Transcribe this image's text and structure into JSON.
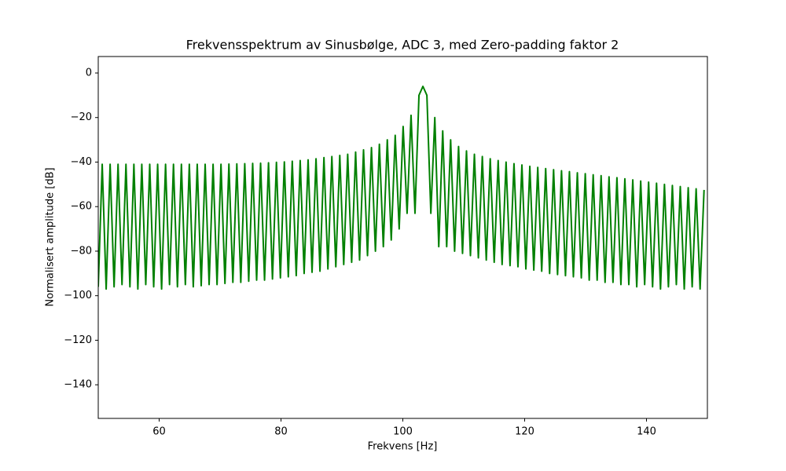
{
  "chart_data": {
    "type": "line",
    "title": "Frekvensspektrum av Sinusbølge, ADC 3, med Zero-padding faktor 2",
    "x_label": "Frekvens [Hz]",
    "y_label": "Normalisert amplitude [dB]",
    "color": "#008000",
    "xlim": [
      50,
      150
    ],
    "ylim": [
      -155.1,
      7.4
    ],
    "xticks": [
      60,
      80,
      100,
      120,
      140
    ],
    "yticks": [
      0,
      {
        "value": -20,
        "label": "−20"
      },
      {
        "value": -40,
        "label": "−40"
      },
      {
        "value": -60,
        "label": "−60"
      },
      {
        "value": -80,
        "label": "−80"
      },
      {
        "value": -100,
        "label": "−100"
      },
      {
        "value": -120,
        "label": "−120"
      },
      {
        "value": -140,
        "label": "−140"
      }
    ],
    "x": [
      50,
      50.65,
      51.3,
      51.95,
      52.6,
      53.25,
      53.9,
      54.55,
      55.2,
      55.85,
      56.5,
      57.15,
      57.8,
      58.45,
      59.1,
      59.75,
      60.4,
      61.05,
      61.7,
      62.35,
      63,
      63.65,
      64.3,
      64.95,
      65.6,
      66.25,
      66.9,
      67.55,
      68.2,
      68.85,
      69.5,
      70.15,
      70.8,
      71.45,
      72.1,
      72.75,
      73.4,
      74.05,
      74.7,
      75.35,
      76,
      76.65,
      77.3,
      77.95,
      78.6,
      79.25,
      79.9,
      80.55,
      81.2,
      81.85,
      82.5,
      83.15,
      83.8,
      84.45,
      85.1,
      85.75,
      86.4,
      87.05,
      87.7,
      88.35,
      89,
      89.65,
      90.3,
      90.95,
      91.6,
      92.25,
      92.9,
      93.55,
      94.2,
      94.85,
      95.5,
      96.15,
      96.8,
      97.45,
      98.1,
      98.75,
      99.4,
      100.05,
      100.7,
      101.35,
      102,
      102.65,
      103.3,
      103.95,
      104.6,
      105.25,
      105.9,
      106.55,
      107.2,
      107.85,
      108.5,
      109.15,
      109.8,
      110.45,
      111.1,
      111.75,
      112.4,
      113.05,
      113.7,
      114.35,
      115,
      115.65,
      116.3,
      116.95,
      117.6,
      118.25,
      118.9,
      119.55,
      120.2,
      120.85,
      121.5,
      122.15,
      122.8,
      123.45,
      124.1,
      124.75,
      125.4,
      126.05,
      126.7,
      127.35,
      128,
      128.65,
      129.3,
      129.95,
      130.6,
      131.25,
      131.9,
      132.55,
      133.2,
      133.85,
      134.5,
      135.15,
      135.8,
      136.45,
      137.1,
      137.75,
      138.4,
      139.05,
      139.7,
      140.35,
      141,
      141.65,
      142.3,
      142.95,
      143.6,
      144.25,
      144.9,
      145.55,
      146.2,
      146.85,
      147.5,
      148.15,
      148.8,
      149.45
    ],
    "values": [
      -96,
      -41,
      -97,
      -41,
      -96,
      -41,
      -95,
      -41,
      -96,
      -41,
      -97,
      -41,
      -95,
      -41,
      -96,
      -41,
      -97,
      -41,
      -95,
      -41,
      -96,
      -41,
      -95,
      -41,
      -96,
      -41,
      -95.5,
      -41,
      -95,
      -41,
      -95,
      -41,
      -94.5,
      -40.9,
      -94,
      -40.8,
      -94,
      -40.7,
      -93.5,
      -40.6,
      -93,
      -40.5,
      -93,
      -40.3,
      -92.5,
      -40.1,
      -92,
      -39.9,
      -91.5,
      -39.6,
      -91,
      -39.3,
      -90,
      -39,
      -89.5,
      -38.5,
      -89,
      -38,
      -88,
      -37.5,
      -87,
      -37,
      -86,
      -36.5,
      -85,
      -35.5,
      -84,
      -34.5,
      -82,
      -33.5,
      -80,
      -32,
      -78,
      -30,
      -75,
      -28,
      -70,
      -24,
      -63,
      -19,
      -63,
      -10,
      -6,
      -10,
      -63,
      -20,
      -78,
      -26,
      -78,
      -30,
      -80,
      -33,
      -81,
      -35,
      -82,
      -36.5,
      -83,
      -37.5,
      -84,
      -38.5,
      -85,
      -39.3,
      -86,
      -40,
      -86.5,
      -40.7,
      -87,
      -41.3,
      -88,
      -41.9,
      -88.5,
      -42.4,
      -89,
      -42.9,
      -90,
      -43.4,
      -90.5,
      -43.9,
      -91,
      -44.3,
      -91.5,
      -44.8,
      -92,
      -45.2,
      -93,
      -45.7,
      -93,
      -46.1,
      -94,
      -46.6,
      -94,
      -47,
      -95,
      -47.5,
      -95,
      -48,
      -96,
      -48.5,
      -95,
      -49,
      -96,
      -49.5,
      -97,
      -50,
      -96,
      -50.5,
      -95,
      -51,
      -97,
      -51.5,
      -96,
      -52,
      -97,
      -52.5
    ]
  }
}
